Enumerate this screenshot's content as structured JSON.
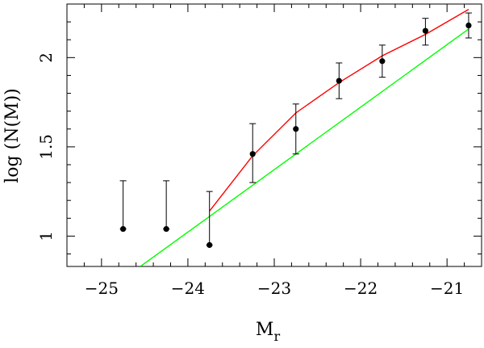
{
  "chart_data": {
    "type": "scatter",
    "xlabel": "M",
    "xlabel_subscript": "r",
    "ylabel": "log (N(M))",
    "xlim": [
      -25.4,
      -20.6
    ],
    "ylim": [
      0.83,
      2.3
    ],
    "x_ticks": [
      {
        "value": -25,
        "label": "−25"
      },
      {
        "value": -24,
        "label": "−24"
      },
      {
        "value": -23,
        "label": "−23"
      },
      {
        "value": -22,
        "label": "−22"
      },
      {
        "value": -21,
        "label": "−21"
      }
    ],
    "y_ticks": [
      {
        "value": 1.0,
        "label": "1"
      },
      {
        "value": 1.5,
        "label": "1.5"
      },
      {
        "value": 2.0,
        "label": "2"
      }
    ],
    "grid": false,
    "points": {
      "color": "#000000",
      "x": [
        -24.75,
        -24.25,
        -23.75,
        -23.25,
        -22.75,
        -22.25,
        -21.75,
        -21.25,
        -20.75
      ],
      "y": [
        1.04,
        1.04,
        0.95,
        1.46,
        1.6,
        1.87,
        1.98,
        2.15,
        2.18
      ],
      "err_low": [
        1.04,
        1.04,
        0.95,
        1.3,
        1.46,
        1.77,
        1.89,
        2.07,
        2.11
      ],
      "err_high": [
        1.31,
        1.31,
        1.25,
        1.63,
        1.74,
        1.97,
        2.07,
        2.22,
        2.25
      ]
    },
    "series": [
      {
        "color": "#ff0000",
        "type": "line",
        "x": [
          -23.75,
          -23.25,
          -22.75,
          -22.25,
          -21.75,
          -21.25,
          -20.75
        ],
        "y": [
          1.14,
          1.45,
          1.69,
          1.86,
          2.01,
          2.13,
          2.27
        ]
      },
      {
        "color": "#00ff00",
        "type": "line",
        "x": [
          -24.55,
          -20.75
        ],
        "y": [
          0.83,
          2.16
        ]
      }
    ]
  }
}
